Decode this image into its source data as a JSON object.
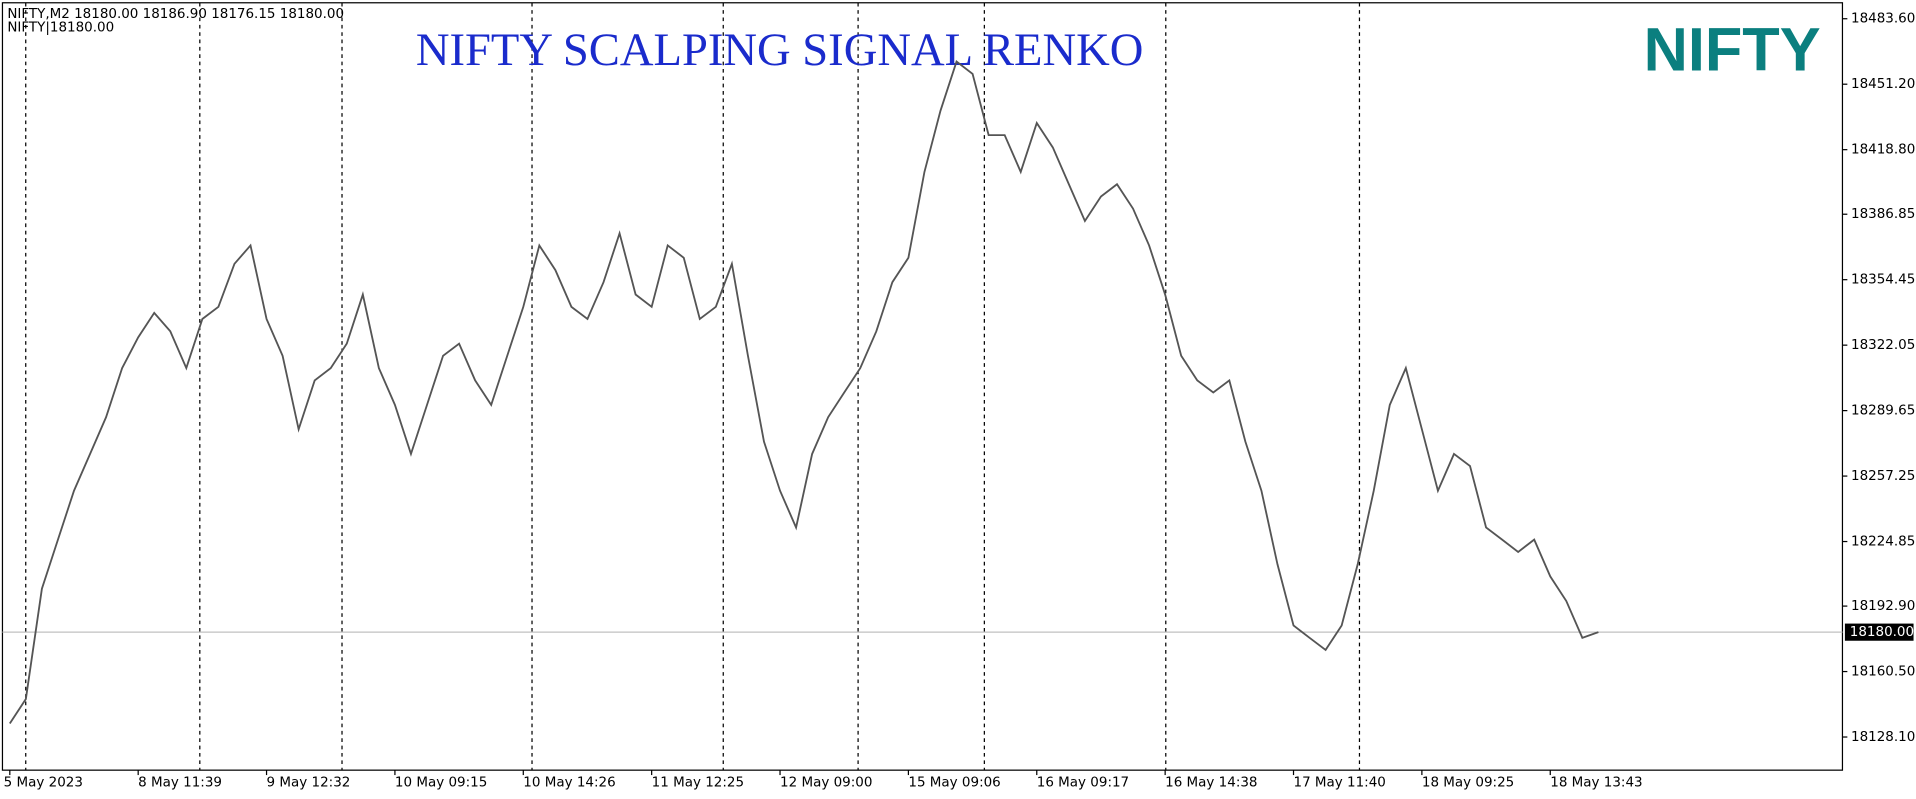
{
  "chart_data": {
    "type": "line",
    "title": "NIFTY SCALPING  SIGNAL RENKO",
    "logo": "NIFTY",
    "info_line": "NIFTY,M2  18180.00 18186.90 18176.15 18180.00",
    "info_line_2": "NIFTY|18180.00",
    "categories": [
      "5 May 2023",
      null,
      null,
      null,
      null,
      null,
      null,
      null,
      "8 May 11:39",
      null,
      null,
      null,
      null,
      null,
      null,
      null,
      "9 May 12:32",
      null,
      null,
      null,
      null,
      null,
      null,
      null,
      "10 May 09:15",
      null,
      null,
      null,
      null,
      null,
      null,
      null,
      "10 May 14:26",
      null,
      null,
      null,
      null,
      null,
      null,
      null,
      "11 May 12:25",
      null,
      null,
      null,
      null,
      null,
      null,
      null,
      "12 May 09:00",
      null,
      null,
      null,
      null,
      null,
      null,
      null,
      "15 May 09:06",
      null,
      null,
      null,
      null,
      null,
      null,
      null,
      "16 May 09:17",
      null,
      null,
      null,
      null,
      null,
      null,
      null,
      "16 May 14:38",
      null,
      null,
      null,
      null,
      null,
      null,
      null,
      "17 May 11:40",
      null,
      null,
      null,
      null,
      null,
      null,
      null,
      "18 May 09:25",
      null,
      null,
      null,
      null,
      null,
      null,
      null,
      "18 May 13:43",
      null,
      null,
      null
    ],
    "series": [
      {
        "color": "#555555",
        "values": [
          18134.8,
          18146.9,
          18201.5,
          18225.8,
          18250,
          18268.2,
          18286.4,
          18310.7,
          18325.9,
          18338,
          18328.9,
          18310.7,
          18335,
          18341,
          18362.3,
          18371.4,
          18335,
          18316.8,
          18280.4,
          18304.6,
          18310.7,
          18322.8,
          18347.1,
          18310.7,
          18292.5,
          18268.2,
          18292.5,
          18316.8,
          18322.8,
          18304.6,
          18292.5,
          18316.8,
          18341,
          18371.4,
          18359.2,
          18341,
          18335,
          18353.2,
          18377.4,
          18347.1,
          18341,
          18371.4,
          18365.3,
          18335,
          18341,
          18362.3,
          18316.8,
          18274.3,
          18250,
          18231.8,
          18268.2,
          18286.4,
          18298.6,
          18310.7,
          18328.9,
          18353.2,
          18365.3,
          18407.8,
          18438.1,
          18462.4,
          18456.3,
          18426,
          18426,
          18407.8,
          18432,
          18419.9,
          18401.7,
          18383.5,
          18395.6,
          18401.7,
          18389.6,
          18371.4,
          18347.1,
          18316.8,
          18304.6,
          18298.6,
          18304.6,
          18274.3,
          18250,
          18213.6,
          18183.3,
          18177.2,
          18171.2,
          18183.3,
          18213.6,
          18250,
          18292.5,
          18310.7,
          18280.4,
          18250,
          18268.2,
          18262.2,
          18231.8,
          18225.8,
          18219.7,
          18225.8,
          18207.6,
          18195.4,
          18177.2,
          18180
        ]
      }
    ],
    "ylim": [
      18111.7,
      18491.5
    ],
    "yticks": [
      {
        "value": 18483.6,
        "label": "18483.60"
      },
      {
        "value": 18451.2,
        "label": "18451.20"
      },
      {
        "value": 18418.8,
        "label": "18418.80"
      },
      18386.85,
      {
        "value": 18354.45,
        "label": "18354.45"
      },
      {
        "value": 18322.05,
        "label": "18322.05"
      },
      {
        "value": 18289.65,
        "label": "18289.65"
      },
      {
        "value": 18257.25,
        "label": "18257.25"
      },
      18224.85,
      {
        "value": 18192.9,
        "label": "18192.90"
      },
      {
        "value": 18160.5,
        "label": "18160.50"
      },
      {
        "value": 18128.1,
        "label": "18128.10"
      }
    ],
    "bid": {
      "value": 18180,
      "label": "18180.00"
    }
  }
}
